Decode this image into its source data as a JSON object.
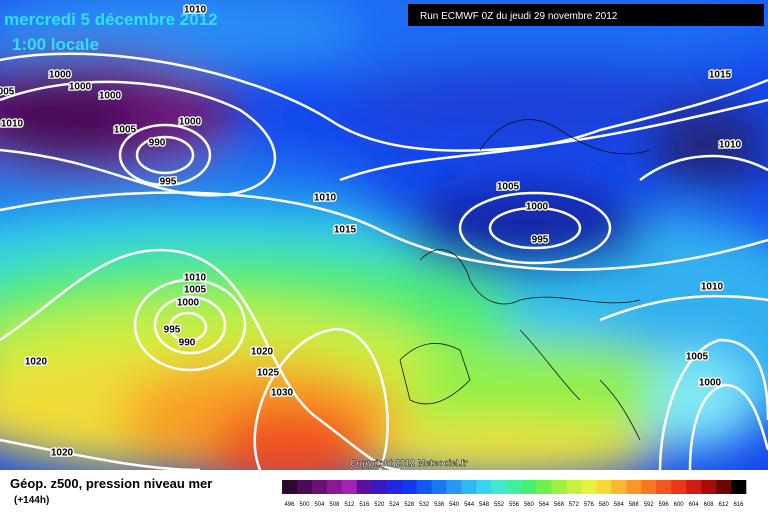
{
  "header": {
    "date": "mercredi 5 décembre 2012",
    "time": "1:00 locale",
    "run": "Run ECMWF 0Z du jeudi 29 novembre 2012"
  },
  "map": {
    "pressure_labels": [
      "1010",
      "1000",
      "005",
      "1000",
      "1000",
      "1010",
      "1005",
      "1000",
      "990",
      "995",
      "1015",
      "1010",
      "1010",
      "1015",
      "1005",
      "1000",
      "995",
      "1010",
      "1005",
      "1000",
      "995",
      "990",
      "1020",
      "1025",
      "1030",
      "1020",
      "1020",
      "1010",
      "1005",
      "1000"
    ],
    "copyright": "Copyright 2012 Meteociel.fr"
  },
  "legend": {
    "title": "Géop. z500, pression niveau mer",
    "lead": "(+144h)",
    "ticks": [
      496,
      500,
      504,
      508,
      512,
      516,
      520,
      524,
      528,
      532,
      536,
      540,
      544,
      548,
      552,
      556,
      560,
      564,
      568,
      572,
      576,
      580,
      584,
      588,
      592,
      596,
      600,
      604,
      608,
      612,
      616
    ],
    "colors": [
      "#2a0a30",
      "#4a0c52",
      "#6a1272",
      "#8a1a94",
      "#a024b0",
      "#5a10a0",
      "#3a18c0",
      "#2428dc",
      "#1438f0",
      "#1058f4",
      "#1878f4",
      "#2898f4",
      "#30b8f4",
      "#38d4f0",
      "#40e8d0",
      "#40f0a0",
      "#48f070",
      "#70f048",
      "#a0f040",
      "#c8f040",
      "#e8f040",
      "#f8d838",
      "#f8b830",
      "#f89828",
      "#f87820",
      "#f05820",
      "#e83818",
      "#d01c10",
      "#a80c08",
      "#700404",
      "#000000"
    ]
  }
}
